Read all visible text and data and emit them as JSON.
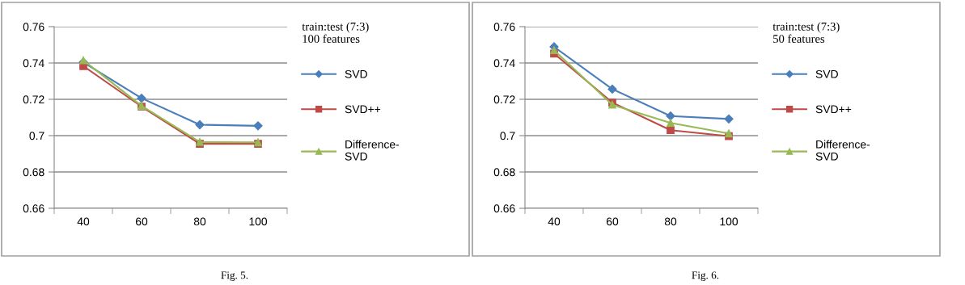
{
  "chart_data": [
    {
      "type": "line",
      "categories": [
        "40",
        "60",
        "80",
        "100"
      ],
      "ylim": [
        0.66,
        0.76
      ],
      "yticks": [
        0.66,
        0.68,
        0.7,
        0.72,
        0.74,
        0.76
      ],
      "grid": "y",
      "legend": "right",
      "legend_title": "train:test (7:3)\n100 features",
      "line_style": "solid",
      "annotations": [
        "Fig. 5."
      ],
      "series": [
        {
          "name": "SVD",
          "color": "#4a7ebb",
          "marker": "diamond",
          "values": [
            0.7404,
            0.7206,
            0.706,
            0.7054
          ]
        },
        {
          "name": "SVD++",
          "color": "#be4b48",
          "marker": "square",
          "values": [
            0.7383,
            0.716,
            0.6955,
            0.6955
          ]
        },
        {
          "name": "Difference-SVD",
          "color": "#98b954",
          "marker": "triangle",
          "values": [
            0.7415,
            0.7164,
            0.6965,
            0.6963
          ]
        }
      ]
    },
    {
      "type": "line",
      "categories": [
        "40",
        "60",
        "80",
        "100"
      ],
      "ylim": [
        0.66,
        0.76
      ],
      "yticks": [
        0.66,
        0.68,
        0.7,
        0.72,
        0.74,
        0.76
      ],
      "grid": "y",
      "legend": "right",
      "legend_title": "train:test (7:3)\n50 features",
      "line_style": "solid",
      "annotations": [
        "Fig. 6."
      ],
      "series": [
        {
          "name": "SVD",
          "color": "#4a7ebb",
          "marker": "diamond",
          "values": [
            0.7489,
            0.7256,
            0.7108,
            0.7092
          ]
        },
        {
          "name": "SVD++",
          "color": "#be4b48",
          "marker": "square",
          "values": [
            0.7452,
            0.7182,
            0.703,
            0.6997
          ]
        },
        {
          "name": "Difference-SVD",
          "color": "#98b954",
          "marker": "triangle",
          "values": [
            0.747,
            0.717,
            0.707,
            0.7012
          ]
        }
      ]
    }
  ]
}
